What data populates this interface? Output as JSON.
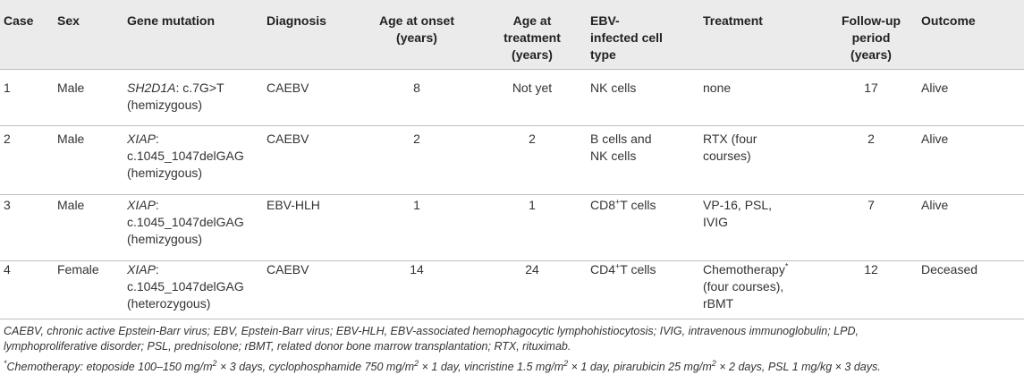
{
  "headers": {
    "case": "Case",
    "sex": "Sex",
    "gene": "Gene mutation",
    "diagnosis": "Diagnosis",
    "onset_l1": "Age at onset",
    "onset_l2": "(years)",
    "treat_age_l1": "Age at",
    "treat_age_l2": "treatment",
    "treat_age_l3": "(years)",
    "ebv_l1": "EBV-",
    "ebv_l2": "infected cell",
    "ebv_l3": "type",
    "treatment": "Treatment",
    "follow_l1": "Follow-up",
    "follow_l2": "period",
    "follow_l3": "(years)",
    "outcome": "Outcome"
  },
  "rows": [
    {
      "case": "1",
      "sex": "Male",
      "gene_name": "SH2D1A",
      "gene_l1_rest": ": c.7G>T",
      "gene_l2": "(hemizygous)",
      "gene_l3": "",
      "diagnosis": "CAEBV",
      "onset": "8",
      "treat_age": "Not yet",
      "cell_l1": "NK cells",
      "cell_l1_sup": "",
      "cell_l1_rest": "",
      "cell_l2": "",
      "tx_l1": "none",
      "tx_l1_sup": "",
      "tx_l2": "",
      "tx_l3": "",
      "follow": "17",
      "outcome": "Alive"
    },
    {
      "case": "2",
      "sex": "Male",
      "gene_name": "XIAP",
      "gene_l1_rest": ":",
      "gene_l2": "c.1045_1047delGAG",
      "gene_l3": "(hemizygous)",
      "diagnosis": "CAEBV",
      "onset": "2",
      "treat_age": "2",
      "cell_l1": "B cells and",
      "cell_l1_sup": "",
      "cell_l1_rest": "",
      "cell_l2": "NK cells",
      "tx_l1": "RTX (four",
      "tx_l1_sup": "",
      "tx_l2": "courses)",
      "tx_l3": "",
      "follow": "2",
      "outcome": "Alive"
    },
    {
      "case": "3",
      "sex": "Male",
      "gene_name": "XIAP",
      "gene_l1_rest": ":",
      "gene_l2": "c.1045_1047delGAG",
      "gene_l3": "(hemizygous)",
      "diagnosis": "EBV-HLH",
      "onset": "1",
      "treat_age": "1",
      "cell_l1": "CD8",
      "cell_l1_sup": "+",
      "cell_l1_rest": "T cells",
      "cell_l2": "",
      "tx_l1": "VP-16, PSL,",
      "tx_l1_sup": "",
      "tx_l2": "IVIG",
      "tx_l3": "",
      "follow": "7",
      "outcome": "Alive"
    },
    {
      "case": "4",
      "sex": "Female",
      "gene_name": "XIAP",
      "gene_l1_rest": ":",
      "gene_l2": "c.1045_1047delGAG",
      "gene_l3": "(heterozygous)",
      "diagnosis": "CAEBV",
      "onset": "14",
      "treat_age": "24",
      "cell_l1": "CD4",
      "cell_l1_sup": "+",
      "cell_l1_rest": "T cells",
      "cell_l2": "",
      "tx_l1": "Chemotherapy",
      "tx_l1_sup": "*",
      "tx_l2": "(four courses),",
      "tx_l3": "rBMT",
      "follow": "12",
      "outcome": "Deceased"
    }
  ],
  "footnotes": {
    "abbr_l1": "CAEBV, chronic active Epstein-Barr virus; EBV, Epstein-Barr virus; EBV-HLH, EBV-associated hemophagocytic lymphohistiocytosis; IVIG, intravenous immunoglobulin; LPD,",
    "abbr_l2": "lymphoproliferative disorder; PSL, prednisolone; rBMT, related donor bone marrow transplantation; RTX, rituximab.",
    "star": "*",
    "chemo_a": "Chemotherapy: etoposide 100–150 mg/m",
    "sq": "2",
    "chemo_b": " × 3 days, cyclophosphamide 750 mg/m",
    "chemo_c": " × 1 day, vincristine 1.5 mg/m",
    "chemo_d": " × 1 day, pirarubicin 25 mg/m",
    "chemo_e": " × 2 days, PSL 1 mg/kg × 3 days."
  }
}
